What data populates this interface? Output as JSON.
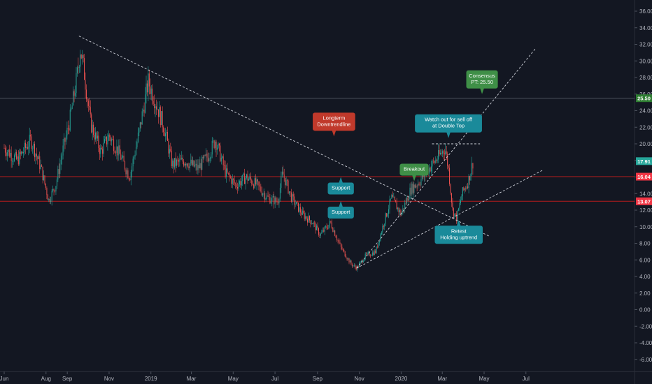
{
  "colors": {
    "background": "#131722",
    "grid": "#1f2430",
    "axis_text": "#b2b5be",
    "candle_up": "#26a69a",
    "candle_down": "#ef5350",
    "trendline": "#d1d4dc",
    "level_line": "#b71c1c",
    "consensus_line": "#4c525e",
    "tag_price": "#26a69a",
    "tag_support": "#f23645",
    "tag_consensus": "#2e7d32",
    "ann_red": "#c0392b",
    "ann_teal": "#1a8a9a",
    "ann_green": "#3f8f47"
  },
  "chart_data": {
    "type": "candlestick",
    "x_axis_labels": [
      "Jun",
      "Aug",
      "Sep",
      "Nov",
      "2019",
      "Mar",
      "May",
      "Jul",
      "Sep",
      "Nov",
      "2020",
      "Mar",
      "May",
      "Jul"
    ],
    "y_axis_labels": [
      "36.00",
      "34.00",
      "32.00",
      "30.00",
      "28.00",
      "26.00",
      "24.00",
      "22.00",
      "20.00",
      "18.00",
      "16.00",
      "14.00",
      "12.00",
      "10.00",
      "8.00",
      "6.00",
      "4.00",
      "2.00",
      "0.00",
      "-2.00",
      "-4.00",
      "-6.00"
    ],
    "ylim": [
      -7.5,
      37.5
    ],
    "grid": false,
    "price_path": [
      {
        "date": "2018-06-01",
        "close": 19.5
      },
      {
        "date": "2018-06-20",
        "close": 18.0
      },
      {
        "date": "2018-07-10",
        "close": 20.5
      },
      {
        "date": "2018-07-25",
        "close": 17.0
      },
      {
        "date": "2018-08-05",
        "close": 13.2
      },
      {
        "date": "2018-08-15",
        "close": 15.0
      },
      {
        "date": "2018-08-25",
        "close": 19.0
      },
      {
        "date": "2018-09-05",
        "close": 23.0
      },
      {
        "date": "2018-09-15",
        "close": 28.0
      },
      {
        "date": "2018-09-20",
        "close": 31.5
      },
      {
        "date": "2018-09-25",
        "close": 29.0
      },
      {
        "date": "2018-10-05",
        "close": 22.5
      },
      {
        "date": "2018-10-20",
        "close": 19.0
      },
      {
        "date": "2018-11-01",
        "close": 21.0
      },
      {
        "date": "2018-11-15",
        "close": 19.0
      },
      {
        "date": "2018-12-01",
        "close": 16.0
      },
      {
        "date": "2018-12-15",
        "close": 21.5
      },
      {
        "date": "2018-12-28",
        "close": 27.5
      },
      {
        "date": "2019-01-10",
        "close": 24.5
      },
      {
        "date": "2019-01-20",
        "close": 22.0
      },
      {
        "date": "2019-02-01",
        "close": 17.5
      },
      {
        "date": "2019-02-20",
        "close": 18.0
      },
      {
        "date": "2019-03-10",
        "close": 17.0
      },
      {
        "date": "2019-03-25",
        "close": 18.5
      },
      {
        "date": "2019-04-05",
        "close": 20.5
      },
      {
        "date": "2019-04-20",
        "close": 16.5
      },
      {
        "date": "2019-05-05",
        "close": 15.0
      },
      {
        "date": "2019-05-20",
        "close": 16.0
      },
      {
        "date": "2019-06-05",
        "close": 15.0
      },
      {
        "date": "2019-06-20",
        "close": 13.5
      },
      {
        "date": "2019-07-05",
        "close": 13.0
      },
      {
        "date": "2019-07-12",
        "close": 16.5
      },
      {
        "date": "2019-07-25",
        "close": 13.5
      },
      {
        "date": "2019-08-10",
        "close": 11.5
      },
      {
        "date": "2019-08-25",
        "close": 10.5
      },
      {
        "date": "2019-09-05",
        "close": 9.0
      },
      {
        "date": "2019-09-20",
        "close": 10.5
      },
      {
        "date": "2019-10-05",
        "close": 7.5
      },
      {
        "date": "2019-10-20",
        "close": 5.5
      },
      {
        "date": "2019-10-28",
        "close": 5.0
      },
      {
        "date": "2019-11-10",
        "close": 6.5
      },
      {
        "date": "2019-11-25",
        "close": 7.0
      },
      {
        "date": "2019-12-05",
        "close": 10.0
      },
      {
        "date": "2019-12-18",
        "close": 13.5
      },
      {
        "date": "2020-01-01",
        "close": 11.5
      },
      {
        "date": "2020-01-15",
        "close": 14.5
      },
      {
        "date": "2020-01-28",
        "close": 15.5
      },
      {
        "date": "2020-02-10",
        "close": 17.0
      },
      {
        "date": "2020-02-25",
        "close": 18.5
      },
      {
        "date": "2020-03-05",
        "close": 19.5
      },
      {
        "date": "2020-03-10",
        "close": 17.0
      },
      {
        "date": "2020-03-16",
        "close": 12.0
      },
      {
        "date": "2020-03-22",
        "close": 11.0
      },
      {
        "date": "2020-03-30",
        "close": 14.0
      },
      {
        "date": "2020-04-08",
        "close": 15.5
      },
      {
        "date": "2020-04-15",
        "close": 17.9
      }
    ],
    "levels": [
      {
        "name": "Consensus PT",
        "value": 25.5,
        "label": "25.50"
      },
      {
        "name": "Support 1",
        "value": 16.04,
        "label": "16.04"
      },
      {
        "name": "Support 2",
        "value": 13.07,
        "label": "13.07"
      }
    ],
    "last_price": {
      "value": 17.91,
      "label": "17.91"
    },
    "trendlines": [
      {
        "name": "Longterm Downtrendline",
        "from": {
          "date": "2018-09-18",
          "price": 33.0
        },
        "to": {
          "date": "2020-05-10",
          "price": 8.8
        }
      },
      {
        "name": "Uptrend steep",
        "from": {
          "date": "2019-10-28",
          "price": 5.0
        },
        "to": {
          "date": "2020-07-15",
          "price": 31.5
        }
      },
      {
        "name": "Uptrend shallow",
        "from": {
          "date": "2019-10-28",
          "price": 5.0
        },
        "to": {
          "date": "2020-07-25",
          "price": 16.8
        }
      },
      {
        "name": "Double Top",
        "from": {
          "date": "2020-02-15",
          "price": 20.0
        },
        "to": {
          "date": "2020-04-25",
          "price": 20.0
        }
      }
    ],
    "annotations": [
      {
        "name": "downtrend-callout",
        "lines": [
          "Longterm",
          "Downtrendline"
        ],
        "color": "red",
        "anchor": {
          "date": "2019-09-25",
          "price": 20.9
        },
        "pointer": "down"
      },
      {
        "name": "support-callout-1",
        "lines": [
          "Support"
        ],
        "color": "teal",
        "anchor": {
          "date": "2019-10-05",
          "price": 16.0
        },
        "pointer": "up"
      },
      {
        "name": "support-callout-2",
        "lines": [
          "Support"
        ],
        "color": "teal",
        "anchor": {
          "date": "2019-10-05",
          "price": 13.1
        },
        "pointer": "up"
      },
      {
        "name": "breakout-callout",
        "lines": [
          "Breakout"
        ],
        "color": "green",
        "anchor": {
          "date": "2020-01-20",
          "price": 15.5
        },
        "pointer": "down"
      },
      {
        "name": "double-top-callout",
        "lines": [
          "Watch out for sell off",
          "at Double Top"
        ],
        "color": "teal",
        "anchor": {
          "date": "2020-03-10",
          "price": 20.7
        },
        "pointer": "down"
      },
      {
        "name": "retest-callout",
        "lines": [
          "Retest",
          "Holding uptrend"
        ],
        "color": "teal",
        "anchor": {
          "date": "2020-03-25",
          "price": 10.8
        },
        "pointer": "up"
      },
      {
        "name": "consensus-callout",
        "lines": [
          "Consensus",
          "PT: 25.50"
        ],
        "color": "green",
        "anchor": {
          "date": "2020-04-28",
          "price": 26.0
        },
        "pointer": "down"
      }
    ]
  }
}
